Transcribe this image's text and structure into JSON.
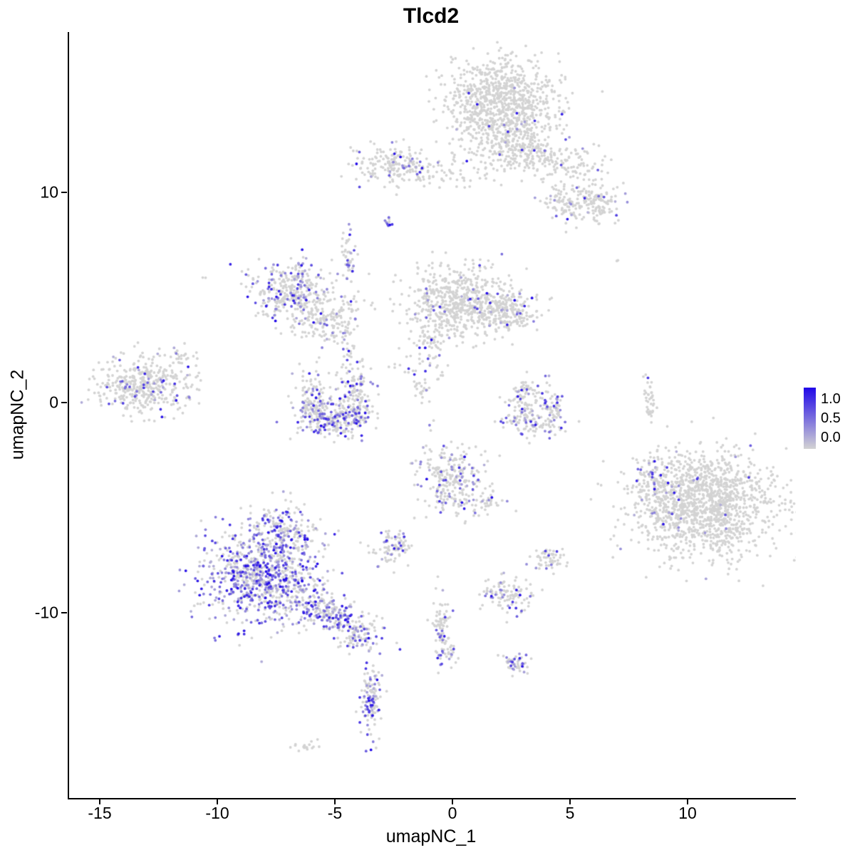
{
  "chart_data": {
    "type": "scatter",
    "subtype": "umap-feature-plot",
    "title": "Tlcd2",
    "gene": "Tlcd2",
    "xlabel": "umapNC_1",
    "ylabel": "umapNC_2",
    "xlim": [
      -16.36,
      14.55
    ],
    "ylim": [
      -18.81,
      17.63
    ],
    "x_ticks": [
      -15,
      -10,
      -5,
      0,
      5,
      10
    ],
    "x_tick_labels": [
      "-15",
      "-10",
      "-5",
      "0",
      "5",
      "10"
    ],
    "y_ticks": [
      10,
      0,
      -10
    ],
    "y_tick_labels": [
      "10",
      "0",
      "-10"
    ],
    "grid": false,
    "legend": {
      "position": "right",
      "labels": [
        "1.0",
        "0.5",
        "0.0"
      ],
      "values": [
        1.0,
        0.5,
        0.0
      ]
    },
    "color_low": "#D3D3D3",
    "color_high": "#2008E8",
    "point_radius": 1.9,
    "clusters": [
      {
        "name": "top-main",
        "cx": 2.0,
        "cy": 14.3,
        "sx": 1.25,
        "sy": 1.05,
        "n": 850,
        "expr": 0.012
      },
      {
        "name": "top-main-lower",
        "cx": 2.4,
        "cy": 12.4,
        "sx": 0.8,
        "sy": 0.8,
        "n": 230,
        "expr": 0.03
      },
      {
        "name": "top-right-arm",
        "cx": 4.3,
        "cy": 11.6,
        "sx": 1.1,
        "sy": 0.45,
        "n": 170,
        "expr": 0.05,
        "rot": -0.3
      },
      {
        "name": "top-right-blob",
        "cx": 5.3,
        "cy": 9.6,
        "sx": 0.75,
        "sy": 0.5,
        "n": 160,
        "expr": 0.06
      },
      {
        "name": "top-right-small",
        "cx": 6.2,
        "cy": 9.4,
        "sx": 0.35,
        "sy": 0.3,
        "n": 50,
        "expr": 0.1
      },
      {
        "name": "upper-left-cluster",
        "cx": -2.6,
        "cy": 11.3,
        "sx": 0.85,
        "sy": 0.5,
        "n": 170,
        "expr": 0.1
      },
      {
        "name": "upper-band",
        "cx": -0.3,
        "cy": 11.0,
        "sx": 1.7,
        "sy": 0.4,
        "n": 80,
        "expr": 0.02
      },
      {
        "name": "tiny-dark-spot",
        "cx": -2.8,
        "cy": 8.6,
        "sx": 0.12,
        "sy": 0.12,
        "n": 10,
        "expr": 0.5
      },
      {
        "name": "mid-left-main",
        "cx": -6.9,
        "cy": 5.3,
        "sx": 0.8,
        "sy": 0.65,
        "n": 360,
        "expr": 0.22
      },
      {
        "name": "mid-left-arm",
        "cx": -5.3,
        "cy": 3.9,
        "sx": 0.75,
        "sy": 0.55,
        "n": 170,
        "expr": 0.15,
        "rot": 0.5
      },
      {
        "name": "mid-left-strand",
        "cx": -4.5,
        "cy": 6.9,
        "sx": 0.18,
        "sy": 0.6,
        "n": 45,
        "expr": 0.4
      },
      {
        "name": "central-main",
        "cx": 0.2,
        "cy": 4.8,
        "sx": 1.15,
        "sy": 0.85,
        "n": 650,
        "expr": 0.04
      },
      {
        "name": "central-right-lobe",
        "cx": 2.4,
        "cy": 4.3,
        "sx": 0.6,
        "sy": 0.5,
        "n": 170,
        "expr": 0.05
      },
      {
        "name": "central-strand",
        "cx": -0.9,
        "cy": 2.4,
        "sx": 0.3,
        "sy": 0.7,
        "n": 55,
        "expr": 0.12
      },
      {
        "name": "central-strand-low",
        "cx": -1.3,
        "cy": 0.7,
        "sx": 0.2,
        "sy": 0.4,
        "n": 25,
        "expr": 0.1
      },
      {
        "name": "far-left-main",
        "cx": -13.3,
        "cy": 0.9,
        "sx": 1.0,
        "sy": 0.7,
        "n": 420,
        "expr": 0.12
      },
      {
        "name": "far-left-tail",
        "cx": -11.6,
        "cy": 2.3,
        "sx": 0.35,
        "sy": 0.25,
        "n": 22,
        "expr": 0.05
      },
      {
        "name": "crescent-left",
        "cx": -6.0,
        "cy": 0.1,
        "sx": 0.4,
        "sy": 0.7,
        "n": 140,
        "expr": 0.3
      },
      {
        "name": "crescent-bottom",
        "cx": -5.1,
        "cy": -0.8,
        "sx": 0.75,
        "sy": 0.4,
        "n": 210,
        "expr": 0.32
      },
      {
        "name": "crescent-right",
        "cx": -4.1,
        "cy": 0.1,
        "sx": 0.38,
        "sy": 0.65,
        "n": 140,
        "expr": 0.28
      },
      {
        "name": "crescent-top-scatter",
        "cx": -4.4,
        "cy": 1.9,
        "sx": 0.35,
        "sy": 0.8,
        "n": 45,
        "expr": 0.2
      },
      {
        "name": "small-arc-left",
        "cx": 2.8,
        "cy": -0.2,
        "sx": 0.35,
        "sy": 0.5,
        "n": 60,
        "expr": 0.25
      },
      {
        "name": "small-arc-bottom",
        "cx": 3.4,
        "cy": -0.9,
        "sx": 0.7,
        "sy": 0.35,
        "n": 90,
        "expr": 0.32
      },
      {
        "name": "small-arc-right",
        "cx": 4.2,
        "cy": -0.3,
        "sx": 0.3,
        "sy": 0.5,
        "n": 60,
        "expr": 0.25
      },
      {
        "name": "small-arc-top",
        "cx": 3.3,
        "cy": 0.6,
        "sx": 0.4,
        "sy": 0.3,
        "n": 40,
        "expr": 0.15
      },
      {
        "name": "right-main",
        "cx": 10.7,
        "cy": -4.9,
        "sx": 1.5,
        "sy": 1.25,
        "n": 1350,
        "expr": 0.015
      },
      {
        "name": "right-left-edge",
        "cx": 8.7,
        "cy": -3.9,
        "sx": 0.5,
        "sy": 0.8,
        "n": 130,
        "expr": 0.18
      },
      {
        "name": "right-strand",
        "cx": 8.3,
        "cy": 0.1,
        "sx": 0.13,
        "sy": 0.55,
        "n": 40,
        "expr": 0.02
      },
      {
        "name": "central-lower",
        "cx": -0.2,
        "cy": -3.6,
        "sx": 0.65,
        "sy": 0.85,
        "n": 250,
        "expr": 0.2
      },
      {
        "name": "central-lower-tail",
        "cx": 1.1,
        "cy": -4.7,
        "sx": 0.5,
        "sy": 0.4,
        "n": 55,
        "expr": 0.1
      },
      {
        "name": "bottom-left-main",
        "cx": -8.2,
        "cy": -8.3,
        "sx": 1.25,
        "sy": 1.05,
        "n": 850,
        "expr": 0.55
      },
      {
        "name": "bottom-left-top",
        "cx": -7.3,
        "cy": -6.1,
        "sx": 0.8,
        "sy": 0.65,
        "n": 200,
        "expr": 0.4
      },
      {
        "name": "bottom-left-arm",
        "cx": -5.4,
        "cy": -10.0,
        "sx": 1.05,
        "sy": 0.45,
        "n": 240,
        "expr": 0.45,
        "rot": -0.45
      },
      {
        "name": "bottom-left-arm-tail",
        "cx": -4.0,
        "cy": -11.1,
        "sx": 0.5,
        "sy": 0.4,
        "n": 80,
        "expr": 0.3
      },
      {
        "name": "small-left-lower",
        "cx": -2.6,
        "cy": -6.9,
        "sx": 0.45,
        "sy": 0.45,
        "n": 90,
        "expr": 0.18
      },
      {
        "name": "small-mid-lower",
        "cx": 2.3,
        "cy": -9.1,
        "sx": 0.5,
        "sy": 0.4,
        "n": 110,
        "expr": 0.28
      },
      {
        "name": "small-right-lower",
        "cx": 4.0,
        "cy": -7.4,
        "sx": 0.4,
        "sy": 0.3,
        "n": 55,
        "expr": 0.12
      },
      {
        "name": "lower-strand",
        "cx": -0.5,
        "cy": -10.4,
        "sx": 0.2,
        "sy": 0.85,
        "n": 75,
        "expr": 0.1
      },
      {
        "name": "lower-strand-blob",
        "cx": -0.2,
        "cy": -11.9,
        "sx": 0.25,
        "sy": 0.3,
        "n": 30,
        "expr": 0.4
      },
      {
        "name": "small-bottom-right",
        "cx": 2.6,
        "cy": -12.4,
        "sx": 0.3,
        "sy": 0.3,
        "n": 50,
        "expr": 0.35
      },
      {
        "name": "bottom-strand",
        "cx": -3.5,
        "cy": -14.2,
        "sx": 0.22,
        "sy": 0.85,
        "n": 130,
        "expr": 0.4
      },
      {
        "name": "bottom-tiny",
        "cx": -6.1,
        "cy": -16.3,
        "sx": 0.3,
        "sy": 0.13,
        "n": 18,
        "expr": 0.05
      },
      {
        "name": "stray-upper-left",
        "cx": -10.6,
        "cy": 5.9,
        "sx": 0.1,
        "sy": 0.1,
        "n": 2,
        "expr": 0
      },
      {
        "name": "stray-right",
        "cx": 7.0,
        "cy": 6.8,
        "sx": 0.08,
        "sy": 0.08,
        "n": 2,
        "expr": 0
      },
      {
        "name": "stray-diagonal",
        "cx": -2.1,
        "cy": 1.6,
        "sx": 0.3,
        "sy": 0.5,
        "n": 12,
        "expr": 0.1
      }
    ]
  }
}
